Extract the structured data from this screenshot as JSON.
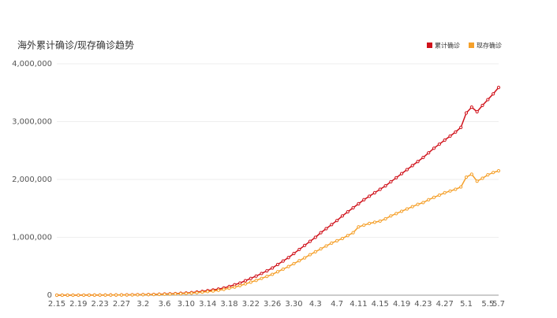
{
  "chart_data": {
    "type": "line",
    "title": "海外累计确诊/现存确诊趋势",
    "categories": [
      "2.15",
      null,
      null,
      null,
      "2.19",
      null,
      null,
      null,
      "2.23",
      null,
      null,
      null,
      "2.27",
      null,
      null,
      null,
      "3.2",
      null,
      null,
      null,
      "3.6",
      null,
      null,
      null,
      "3.10",
      null,
      null,
      null,
      "3.14",
      null,
      null,
      null,
      "3.18",
      null,
      null,
      null,
      "3.22",
      null,
      null,
      null,
      "3.26",
      null,
      null,
      null,
      "3.30",
      null,
      null,
      null,
      "4.3",
      null,
      null,
      null,
      "4.7",
      null,
      null,
      null,
      "4.11",
      null,
      null,
      null,
      "4.15",
      null,
      null,
      null,
      "4.19",
      null,
      null,
      null,
      "4.23",
      null,
      null,
      null,
      "4.27",
      null,
      null,
      null,
      "5.1",
      null,
      null,
      null,
      "5.5",
      null,
      "5.7"
    ],
    "series": [
      {
        "name": "累计确诊",
        "color": "#d0121b",
        "values": [
          500,
          550,
          600,
          700,
          800,
          900,
          1100,
          1500,
          2000,
          2500,
          3000,
          3700,
          4500,
          5500,
          7000,
          8500,
          10000,
          12000,
          14000,
          17000,
          20000,
          24000,
          28000,
          33000,
          38000,
          45000,
          54000,
          65000,
          78000,
          90000,
          105000,
          125000,
          150000,
          180000,
          210000,
          250000,
          290000,
          330000,
          375000,
          420000,
          470000,
          530000,
          590000,
          650000,
          720000,
          790000,
          860000,
          930000,
          1000000,
          1080000,
          1150000,
          1220000,
          1290000,
          1370000,
          1440000,
          1510000,
          1580000,
          1650000,
          1710000,
          1770000,
          1830000,
          1890000,
          1960000,
          2030000,
          2100000,
          2170000,
          2240000,
          2310000,
          2380000,
          2460000,
          2540000,
          2610000,
          2680000,
          2750000,
          2820000,
          2900000,
          3150000,
          3250000,
          3170000,
          3280000,
          3380000,
          3480000,
          3590000
        ]
      },
      {
        "name": "现存确诊",
        "color": "#f5a02a",
        "values": [
          400,
          450,
          500,
          580,
          650,
          730,
          900,
          1200,
          1600,
          2000,
          2400,
          3000,
          3600,
          4400,
          5600,
          6800,
          8000,
          9600,
          11200,
          13600,
          16000,
          19000,
          22000,
          26000,
          30000,
          36000,
          43000,
          52000,
          62000,
          72000,
          84000,
          100000,
          120000,
          140000,
          165000,
          195000,
          225000,
          255000,
          290000,
          325000,
          360000,
          405000,
          450000,
          495000,
          545000,
          595000,
          645000,
          700000,
          750000,
          800000,
          850000,
          900000,
          940000,
          980000,
          1030000,
          1080000,
          1180000,
          1210000,
          1240000,
          1260000,
          1280000,
          1320000,
          1370000,
          1410000,
          1450000,
          1490000,
          1530000,
          1570000,
          1600000,
          1650000,
          1690000,
          1730000,
          1770000,
          1800000,
          1830000,
          1870000,
          2040000,
          2090000,
          1970000,
          2020000,
          2080000,
          2120000,
          2150000
        ]
      }
    ],
    "ylim": [
      0,
      4000000
    ],
    "yticks": [
      0,
      {
        "value": 1000000,
        "label": "1,000,000"
      },
      {
        "value": 2000000,
        "label": "2,000,000"
      },
      {
        "value": 3000000,
        "label": "3,000,000"
      },
      {
        "value": 4000000,
        "label": "4,000,000"
      }
    ],
    "grid": true,
    "legend": "top-right"
  }
}
